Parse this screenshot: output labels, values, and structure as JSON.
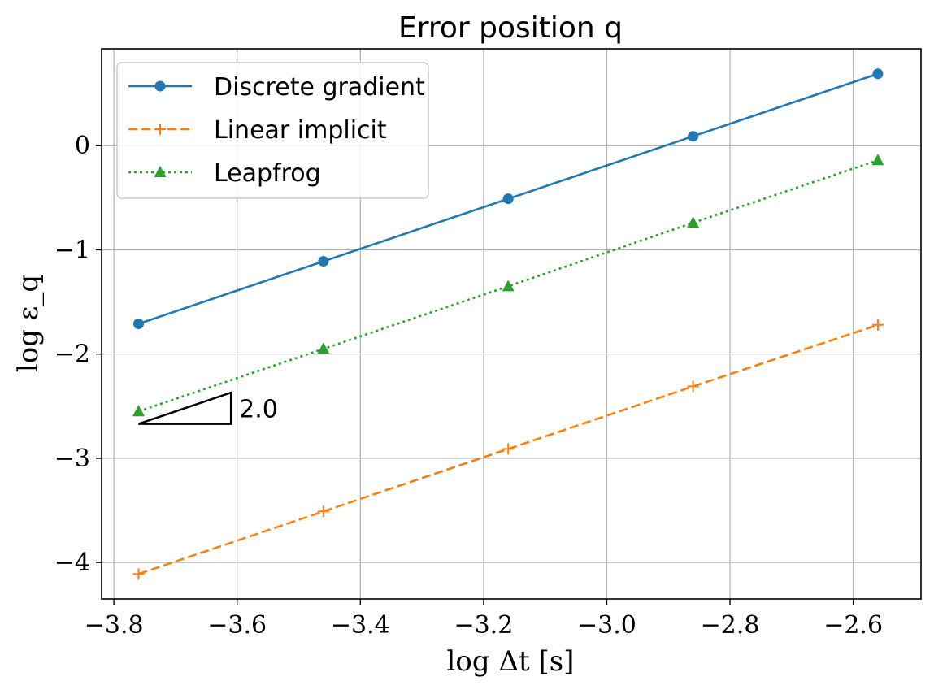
{
  "chart_data": {
    "type": "line",
    "title": "Error position q",
    "xlabel": "log Δt [s]",
    "ylabel": "log ε_q",
    "xlim": [
      -3.82,
      -2.49
    ],
    "ylim": [
      -4.35,
      0.93
    ],
    "xticks": [
      -3.8,
      -3.6,
      -3.4,
      -3.2,
      -3.0,
      -2.8,
      -2.6
    ],
    "xtick_labels": [
      "−3.8",
      "−3.6",
      "−3.4",
      "−3.2",
      "−3.0",
      "−2.8",
      "−2.6"
    ],
    "yticks": [
      -4,
      -3,
      -2,
      -1,
      0
    ],
    "ytick_labels": [
      "−4",
      "−3",
      "−2",
      "−1",
      "0"
    ],
    "grid": true,
    "legend_position": "top-left",
    "x": [
      -3.76,
      -3.46,
      -3.16,
      -2.86,
      -2.56
    ],
    "series": [
      {
        "name": "Discrete gradient",
        "values": [
          -1.71,
          -1.11,
          -0.51,
          0.09,
          0.69
        ],
        "color": "#1f77b4",
        "linestyle": "solid",
        "marker": "circle"
      },
      {
        "name": "Linear implicit",
        "values": [
          -4.11,
          -3.51,
          -2.91,
          -2.31,
          -1.72
        ],
        "color": "#ff7f0e",
        "linestyle": "dashed",
        "marker": "plus"
      },
      {
        "name": "Leapfrog",
        "values": [
          -2.55,
          -1.95,
          -1.35,
          -0.74,
          -0.14
        ],
        "color": "#2ca02c",
        "linestyle": "dotted",
        "marker": "triangle"
      }
    ],
    "slope_triangle": {
      "label": "2.0",
      "x0": -3.76,
      "x1": -3.61,
      "y0": -2.67,
      "y1": -2.37
    }
  }
}
